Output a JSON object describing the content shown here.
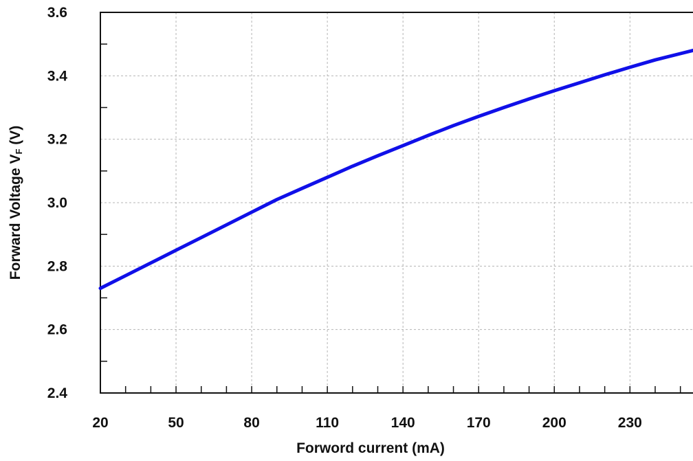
{
  "chart_data": {
    "type": "line",
    "xlabel": "Forword current (mA)",
    "ylabel_main": "Forward Voltage V",
    "ylabel_sub": "F",
    "ylabel_unit": " (V)",
    "xlim": [
      20,
      255
    ],
    "ylim": [
      2.4,
      3.6
    ],
    "xticks": [
      "20",
      "50",
      "80",
      "110",
      "140",
      "170",
      "200",
      "230"
    ],
    "yticks": [
      "2.4",
      "2.6",
      "2.8",
      "3.0",
      "3.2",
      "3.4",
      "3.6"
    ],
    "grid": true,
    "series": [
      {
        "color": "#1010e8",
        "x": [
          20,
          30,
          40,
          50,
          60,
          70,
          80,
          90,
          100,
          110,
          120,
          130,
          140,
          150,
          160,
          170,
          180,
          190,
          200,
          210,
          220,
          230,
          240,
          250,
          255
        ],
        "y": [
          2.73,
          2.77,
          2.81,
          2.85,
          2.89,
          2.93,
          2.97,
          3.01,
          3.045,
          3.08,
          3.115,
          3.148,
          3.18,
          3.212,
          3.243,
          3.272,
          3.3,
          3.327,
          3.353,
          3.378,
          3.403,
          3.427,
          3.45,
          3.47,
          3.48
        ]
      }
    ]
  }
}
